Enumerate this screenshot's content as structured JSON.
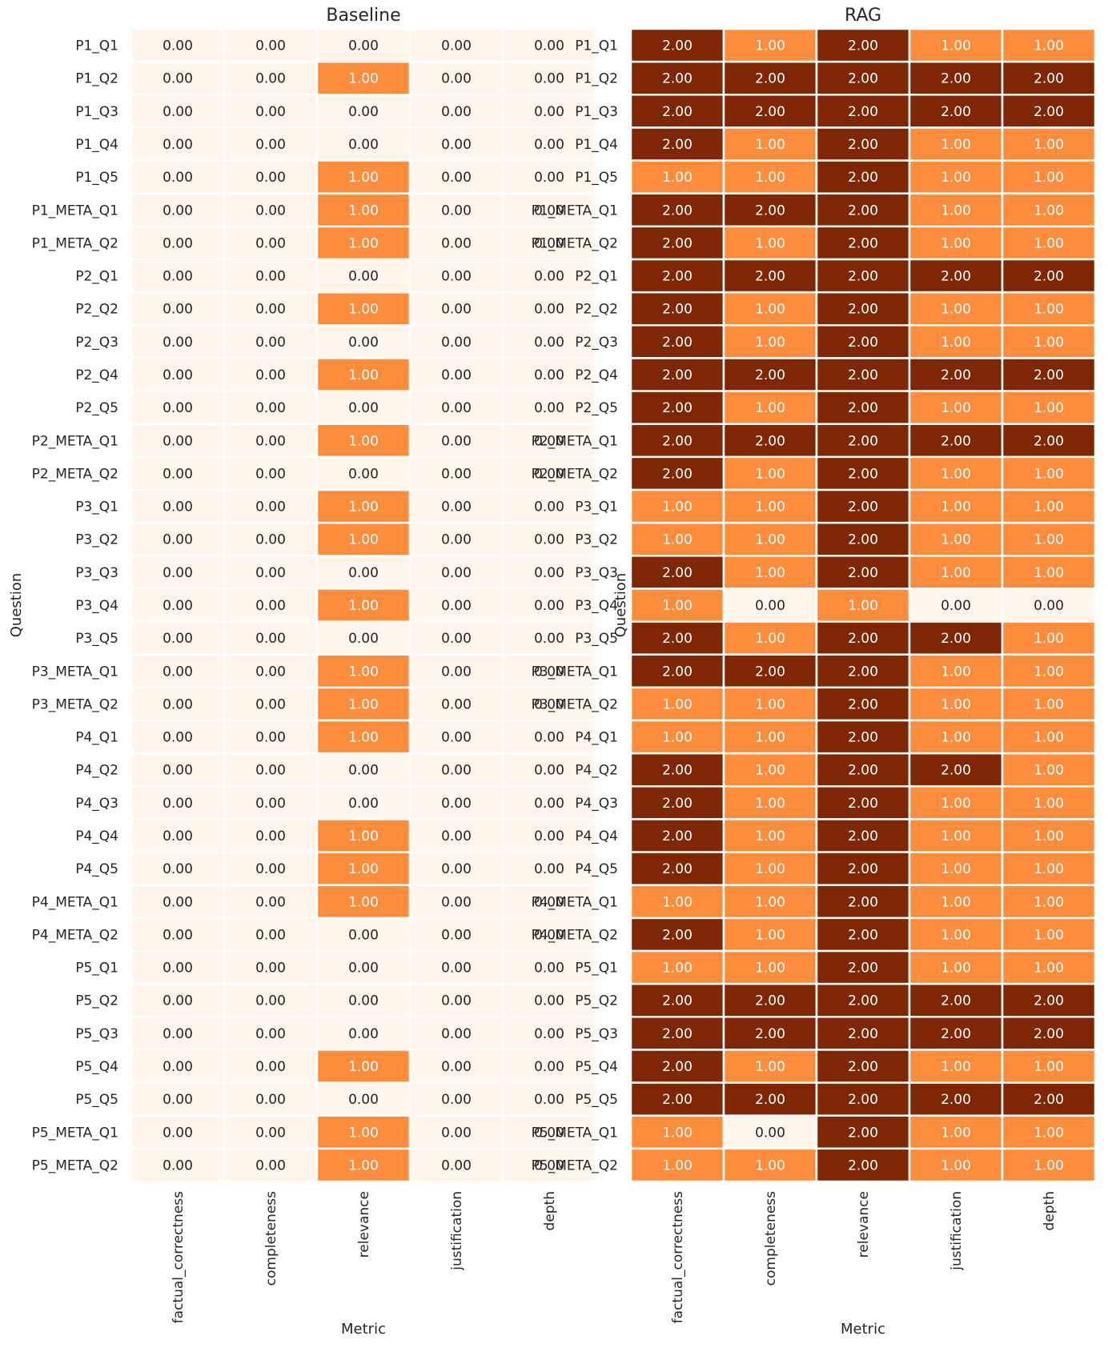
{
  "colors": {
    "v0": "#fff5eb",
    "v1": "#fd8d3c",
    "v2": "#7f2704",
    "text_light": "#262626",
    "text_dark": "#ffffff",
    "grid": "#ffffff"
  },
  "chart_data": [
    {
      "type": "heatmap",
      "title": "Baseline",
      "xlabel": "Metric",
      "ylabel": "Question",
      "columns": [
        "factual_correctness",
        "completeness",
        "relevance",
        "justification",
        "depth"
      ],
      "rows": [
        "P1_Q1",
        "P1_Q2",
        "P1_Q3",
        "P1_Q4",
        "P1_Q5",
        "P1_META_Q1",
        "P1_META_Q2",
        "P2_Q1",
        "P2_Q2",
        "P2_Q3",
        "P2_Q4",
        "P2_Q5",
        "P2_META_Q1",
        "P2_META_Q2",
        "P3_Q1",
        "P3_Q2",
        "P3_Q3",
        "P3_Q4",
        "P3_Q5",
        "P3_META_Q1",
        "P3_META_Q2",
        "P4_Q1",
        "P4_Q2",
        "P4_Q3",
        "P4_Q4",
        "P4_Q5",
        "P4_META_Q1",
        "P4_META_Q2",
        "P5_Q1",
        "P5_Q2",
        "P5_Q3",
        "P5_Q4",
        "P5_Q5",
        "P5_META_Q1",
        "P5_META_Q2"
      ],
      "values": [
        [
          0,
          0,
          0,
          0,
          0
        ],
        [
          0,
          0,
          1,
          0,
          0
        ],
        [
          0,
          0,
          0,
          0,
          0
        ],
        [
          0,
          0,
          0,
          0,
          0
        ],
        [
          0,
          0,
          1,
          0,
          0
        ],
        [
          0,
          0,
          1,
          0,
          0
        ],
        [
          0,
          0,
          1,
          0,
          0
        ],
        [
          0,
          0,
          0,
          0,
          0
        ],
        [
          0,
          0,
          1,
          0,
          0
        ],
        [
          0,
          0,
          0,
          0,
          0
        ],
        [
          0,
          0,
          1,
          0,
          0
        ],
        [
          0,
          0,
          0,
          0,
          0
        ],
        [
          0,
          0,
          1,
          0,
          0
        ],
        [
          0,
          0,
          0,
          0,
          0
        ],
        [
          0,
          0,
          1,
          0,
          0
        ],
        [
          0,
          0,
          1,
          0,
          0
        ],
        [
          0,
          0,
          0,
          0,
          0
        ],
        [
          0,
          0,
          1,
          0,
          0
        ],
        [
          0,
          0,
          0,
          0,
          0
        ],
        [
          0,
          0,
          1,
          0,
          0
        ],
        [
          0,
          0,
          1,
          0,
          0
        ],
        [
          0,
          0,
          1,
          0,
          0
        ],
        [
          0,
          0,
          0,
          0,
          0
        ],
        [
          0,
          0,
          0,
          0,
          0
        ],
        [
          0,
          0,
          1,
          0,
          0
        ],
        [
          0,
          0,
          1,
          0,
          0
        ],
        [
          0,
          0,
          1,
          0,
          0
        ],
        [
          0,
          0,
          0,
          0,
          0
        ],
        [
          0,
          0,
          0,
          0,
          0
        ],
        [
          0,
          0,
          0,
          0,
          0
        ],
        [
          0,
          0,
          0,
          0,
          0
        ],
        [
          0,
          0,
          1,
          0,
          0
        ],
        [
          0,
          0,
          0,
          0,
          0
        ],
        [
          0,
          0,
          1,
          0,
          0
        ],
        [
          0,
          0,
          1,
          0,
          0
        ]
      ]
    },
    {
      "type": "heatmap",
      "title": "RAG",
      "xlabel": "Metric",
      "ylabel": "Question",
      "columns": [
        "factual_correctness",
        "completeness",
        "relevance",
        "justification",
        "depth"
      ],
      "rows": [
        "P1_Q1",
        "P1_Q2",
        "P1_Q3",
        "P1_Q4",
        "P1_Q5",
        "P1_META_Q1",
        "P1_META_Q2",
        "P2_Q1",
        "P2_Q2",
        "P2_Q3",
        "P2_Q4",
        "P2_Q5",
        "P2_META_Q1",
        "P2_META_Q2",
        "P3_Q1",
        "P3_Q2",
        "P3_Q3",
        "P3_Q4",
        "P3_Q5",
        "P3_META_Q1",
        "P3_META_Q2",
        "P4_Q1",
        "P4_Q2",
        "P4_Q3",
        "P4_Q4",
        "P4_Q5",
        "P4_META_Q1",
        "P4_META_Q2",
        "P5_Q1",
        "P5_Q2",
        "P5_Q3",
        "P5_Q4",
        "P5_Q5",
        "P5_META_Q1",
        "P5_META_Q2"
      ],
      "values": [
        [
          2,
          1,
          2,
          1,
          1
        ],
        [
          2,
          2,
          2,
          2,
          2
        ],
        [
          2,
          2,
          2,
          2,
          2
        ],
        [
          2,
          1,
          2,
          1,
          1
        ],
        [
          1,
          1,
          2,
          1,
          1
        ],
        [
          2,
          2,
          2,
          1,
          1
        ],
        [
          2,
          1,
          2,
          1,
          1
        ],
        [
          2,
          2,
          2,
          2,
          2
        ],
        [
          2,
          1,
          2,
          1,
          1
        ],
        [
          2,
          1,
          2,
          1,
          1
        ],
        [
          2,
          2,
          2,
          2,
          2
        ],
        [
          2,
          1,
          2,
          1,
          1
        ],
        [
          2,
          2,
          2,
          2,
          2
        ],
        [
          2,
          1,
          2,
          1,
          1
        ],
        [
          1,
          1,
          2,
          1,
          1
        ],
        [
          1,
          1,
          2,
          1,
          1
        ],
        [
          2,
          1,
          2,
          1,
          1
        ],
        [
          1,
          0,
          1,
          0,
          0
        ],
        [
          2,
          1,
          2,
          2,
          1
        ],
        [
          2,
          2,
          2,
          1,
          1
        ],
        [
          1,
          1,
          2,
          1,
          1
        ],
        [
          1,
          1,
          2,
          1,
          1
        ],
        [
          2,
          1,
          2,
          2,
          1
        ],
        [
          2,
          1,
          2,
          1,
          1
        ],
        [
          2,
          1,
          2,
          1,
          1
        ],
        [
          2,
          1,
          2,
          1,
          1
        ],
        [
          1,
          1,
          2,
          1,
          1
        ],
        [
          2,
          1,
          2,
          1,
          1
        ],
        [
          1,
          1,
          2,
          1,
          1
        ],
        [
          2,
          2,
          2,
          2,
          2
        ],
        [
          2,
          2,
          2,
          2,
          2
        ],
        [
          2,
          1,
          2,
          1,
          1
        ],
        [
          2,
          2,
          2,
          2,
          2
        ],
        [
          1,
          0,
          2,
          1,
          1
        ],
        [
          1,
          1,
          2,
          1,
          1
        ]
      ]
    }
  ]
}
